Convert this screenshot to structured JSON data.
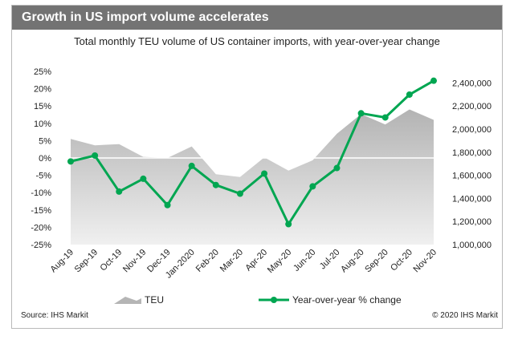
{
  "header": {
    "title": "Growth in US import volume accelerates"
  },
  "chart_data": {
    "type": "area+line",
    "title": "Total monthly TEU volume of US container imports, with year-over-year change",
    "categories": [
      "Aug-19",
      "Sep-19",
      "Oct-19",
      "Nov-19",
      "Dec-19",
      "Jan-2020",
      "Feb-20",
      "Mar-20",
      "Apr-20",
      "May-20",
      "Jun-20",
      "Jul-20",
      "Aug-20",
      "Sep-20",
      "Oct-20",
      "Nov-20"
    ],
    "series": [
      {
        "name": "TEU",
        "axis": "right",
        "type": "area",
        "color": "#c8c8c8",
        "values": [
          1915000,
          1860000,
          1870000,
          1760000,
          1750000,
          1850000,
          1610000,
          1585000,
          1755000,
          1640000,
          1730000,
          1960000,
          2130000,
          2040000,
          2170000,
          2080000
        ]
      },
      {
        "name": "Year-over-year % change",
        "axis": "left",
        "type": "line",
        "color": "#00a651",
        "values": [
          -1.0,
          0.7,
          -9.7,
          -6.0,
          -13.6,
          -2.3,
          -7.8,
          -10.3,
          -4.5,
          -19.1,
          -8.2,
          -2.9,
          12.9,
          11.7,
          18.3,
          22.3
        ]
      }
    ],
    "y_left": {
      "ylim": [
        -25,
        25
      ],
      "ticks": [
        "25%",
        "20%",
        "15%",
        "10%",
        "5%",
        "0%",
        "-5%",
        "-10%",
        "-15%",
        "-20%",
        "-25%"
      ]
    },
    "y_right": {
      "ylim": [
        1000000,
        2500000
      ],
      "ticks": [
        "2,400,000",
        "2,200,000",
        "2,000,000",
        "1,800,000",
        "1,600,000",
        "1,400,000",
        "1,200,000",
        "1,000,000"
      ]
    },
    "legend": {
      "position": "bottom",
      "items": [
        "TEU",
        "Year-over-year % change"
      ]
    }
  },
  "footer": {
    "source": "Source: IHS Markit",
    "copyright": "© 2020 IHS Markit"
  }
}
